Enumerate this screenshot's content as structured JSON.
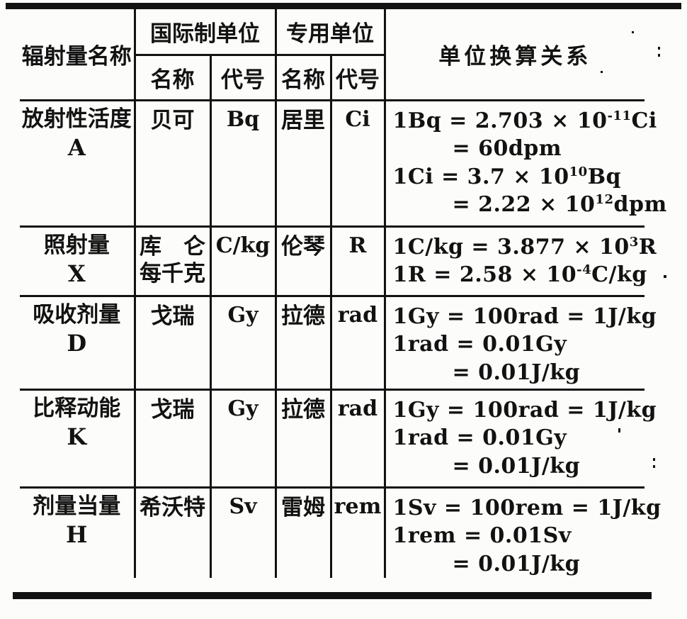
{
  "colors": {
    "ink": "#121212",
    "paper": "#fcfcfa"
  },
  "table": {
    "header": {
      "col_quantity": "辐射量名称",
      "group_si": "国际制单位",
      "group_special": "专用单位",
      "si_sub_name": "名称",
      "si_sub_symbol": "代号",
      "sp_sub_name": "名称",
      "sp_sub_symbol": "代号",
      "col_conversion": "单位换算关系"
    },
    "rows": [
      {
        "quantity": "放射性活度",
        "letter": "A",
        "si_name": [
          "贝可"
        ],
        "si_symbol": "Bq",
        "sp_name": "居里",
        "sp_symbol": "Ci",
        "formulas": [
          {
            "indent": false,
            "parts": [
              {
                "t": "1Bq = 2.703 × 10"
              },
              {
                "sup": "-11"
              },
              {
                "t": "Ci"
              }
            ]
          },
          {
            "indent": true,
            "parts": [
              {
                "t": "= 60dpm"
              }
            ]
          },
          {
            "indent": false,
            "parts": [
              {
                "t": "1Ci = 3.7 × 10"
              },
              {
                "sup": "10"
              },
              {
                "t": "Bq"
              }
            ]
          },
          {
            "indent": true,
            "parts": [
              {
                "t": "= 2.22 × 10"
              },
              {
                "sup": "12"
              },
              {
                "t": "dpm"
              }
            ]
          }
        ]
      },
      {
        "quantity": "照射量",
        "letter": "X",
        "si_name": [
          "库　仑",
          "每千克"
        ],
        "si_symbol": "C/kg",
        "sp_name": "伦琴",
        "sp_symbol": "R",
        "formulas": [
          {
            "indent": false,
            "parts": [
              {
                "t": "1C/kg = 3.877 × 10"
              },
              {
                "sup": "3"
              },
              {
                "t": "R"
              }
            ]
          },
          {
            "indent": false,
            "parts": [
              {
                "t": "1R = 2.58 × 10"
              },
              {
                "sup": "-4"
              },
              {
                "t": "C/kg"
              }
            ]
          }
        ]
      },
      {
        "quantity": "吸收剂量",
        "letter": "D",
        "si_name": [
          "戈瑞"
        ],
        "si_symbol": "Gy",
        "sp_name": "拉德",
        "sp_symbol": "rad",
        "formulas": [
          {
            "indent": false,
            "parts": [
              {
                "t": "1Gy = 100rad = 1J/kg"
              }
            ]
          },
          {
            "indent": false,
            "parts": [
              {
                "t": "1rad = 0.01Gy"
              }
            ]
          },
          {
            "indent": true,
            "parts": [
              {
                "t": "= 0.01J/kg"
              }
            ]
          }
        ]
      },
      {
        "quantity": "比释动能",
        "letter": "K",
        "si_name": [
          "戈瑞"
        ],
        "si_symbol": "Gy",
        "sp_name": "拉德",
        "sp_symbol": "rad",
        "formulas": [
          {
            "indent": false,
            "parts": [
              {
                "t": "1Gy = 100rad = 1J/kg"
              }
            ]
          },
          {
            "indent": false,
            "parts": [
              {
                "t": "1rad = 0.01Gy"
              }
            ]
          },
          {
            "indent": true,
            "parts": [
              {
                "t": "= 0.01J/kg"
              }
            ]
          }
        ]
      },
      {
        "quantity": "剂量当量",
        "letter": "H",
        "si_name": [
          "希沃特"
        ],
        "si_symbol": "Sv",
        "sp_name": "雷姆",
        "sp_symbol": "rem",
        "formulas": [
          {
            "indent": false,
            "parts": [
              {
                "t": "1Sv = 100rem = 1J/kg"
              }
            ]
          },
          {
            "indent": false,
            "parts": [
              {
                "t": "1rem = 0.01Sv"
              }
            ]
          },
          {
            "indent": true,
            "parts": [
              {
                "t": "= 0.01J/kg"
              }
            ]
          }
        ]
      }
    ]
  }
}
